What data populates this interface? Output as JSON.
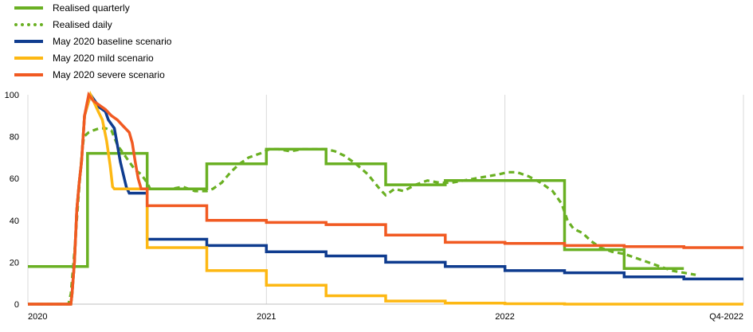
{
  "chart_data": {
    "type": "line",
    "title": "",
    "xlabel": "",
    "ylabel": "",
    "xlim": [
      0,
      12
    ],
    "ylim": [
      0,
      100
    ],
    "yticks": [
      0,
      20,
      40,
      60,
      80,
      100
    ],
    "xticks": [
      {
        "value": 0,
        "label": "2020"
      },
      {
        "value": 4,
        "label": "2021"
      },
      {
        "value": 8,
        "label": "2022"
      },
      {
        "value": 12,
        "label": "Q4-2022"
      }
    ],
    "grid": "vertical",
    "legend_position": "top-left",
    "series": [
      {
        "name": "Realised quarterly",
        "color": "#6ab023",
        "style": "solid",
        "points": [
          [
            0,
            18
          ],
          [
            1,
            18
          ],
          [
            1,
            72
          ],
          [
            2,
            72
          ],
          [
            2,
            55
          ],
          [
            3,
            55
          ],
          [
            3,
            67
          ],
          [
            4,
            67
          ],
          [
            4,
            74
          ],
          [
            5,
            74
          ],
          [
            5,
            67
          ],
          [
            6,
            67
          ],
          [
            6,
            57
          ],
          [
            7,
            57
          ],
          [
            7,
            59
          ],
          [
            8,
            59
          ],
          [
            8,
            59
          ],
          [
            9,
            59
          ],
          [
            9,
            55
          ],
          [
            9,
            26
          ],
          [
            10,
            26
          ],
          [
            10,
            17
          ],
          [
            11,
            17
          ]
        ]
      },
      {
        "name": "Realised daily",
        "color": "#6ab023",
        "style": "dotted",
        "points": [
          [
            0,
            0
          ],
          [
            0.68,
            0
          ],
          [
            0.72,
            5
          ],
          [
            0.78,
            25
          ],
          [
            0.84,
            48
          ],
          [
            0.9,
            70
          ],
          [
            0.94,
            80
          ],
          [
            1.02,
            82
          ],
          [
            1.1,
            83
          ],
          [
            1.2,
            84
          ],
          [
            1.3,
            84
          ],
          [
            1.4,
            83
          ],
          [
            1.5,
            76
          ],
          [
            1.6,
            72
          ],
          [
            1.7,
            68
          ],
          [
            1.8,
            64
          ],
          [
            1.9,
            62
          ],
          [
            2.0,
            58
          ],
          [
            2.05,
            55
          ],
          [
            2.2,
            55
          ],
          [
            2.4,
            55
          ],
          [
            2.6,
            56
          ],
          [
            2.8,
            54
          ],
          [
            3.0,
            54
          ],
          [
            3.1,
            55
          ],
          [
            3.25,
            58
          ],
          [
            3.4,
            63
          ],
          [
            3.55,
            67
          ],
          [
            3.7,
            70
          ],
          [
            3.9,
            72
          ],
          [
            4.05,
            74
          ],
          [
            4.2,
            74
          ],
          [
            4.4,
            73
          ],
          [
            4.6,
            74
          ],
          [
            4.8,
            74
          ],
          [
            5.0,
            74
          ],
          [
            5.15,
            73
          ],
          [
            5.3,
            71
          ],
          [
            5.5,
            67
          ],
          [
            5.7,
            62
          ],
          [
            5.9,
            55
          ],
          [
            6.0,
            52
          ],
          [
            6.15,
            55
          ],
          [
            6.3,
            54
          ],
          [
            6.5,
            57
          ],
          [
            6.7,
            59
          ],
          [
            6.9,
            58
          ],
          [
            7.1,
            58
          ],
          [
            7.3,
            59
          ],
          [
            7.5,
            60
          ],
          [
            7.7,
            61
          ],
          [
            7.9,
            62
          ],
          [
            8.05,
            63
          ],
          [
            8.2,
            63
          ],
          [
            8.4,
            61
          ],
          [
            8.6,
            58
          ],
          [
            8.8,
            54
          ],
          [
            8.95,
            48
          ],
          [
            9.05,
            40
          ],
          [
            9.15,
            36
          ],
          [
            9.3,
            34
          ],
          [
            9.45,
            30
          ],
          [
            9.6,
            27
          ],
          [
            9.8,
            25
          ],
          [
            10.0,
            24
          ],
          [
            10.2,
            22
          ],
          [
            10.4,
            20
          ],
          [
            10.6,
            18
          ],
          [
            10.8,
            16
          ],
          [
            11.0,
            15
          ],
          [
            11.2,
            14
          ]
        ]
      },
      {
        "name": "May 2020 baseline scenario",
        "color": "#0f3c8f",
        "style": "solid",
        "points": [
          [
            0,
            0
          ],
          [
            0.72,
            0
          ],
          [
            0.74,
            5
          ],
          [
            0.78,
            20
          ],
          [
            0.82,
            45
          ],
          [
            0.86,
            58
          ],
          [
            0.9,
            68
          ],
          [
            0.95,
            90
          ],
          [
            1.05,
            100
          ],
          [
            1.1,
            98
          ],
          [
            1.2,
            94
          ],
          [
            1.3,
            92
          ],
          [
            1.35,
            88
          ],
          [
            1.45,
            84
          ],
          [
            1.5,
            76
          ],
          [
            1.55,
            68
          ],
          [
            1.6,
            62
          ],
          [
            1.65,
            56
          ],
          [
            1.7,
            53
          ],
          [
            2,
            53
          ],
          [
            2,
            31
          ],
          [
            3,
            31
          ],
          [
            3,
            28
          ],
          [
            4,
            28
          ],
          [
            4,
            25
          ],
          [
            5,
            25
          ],
          [
            5,
            23
          ],
          [
            6,
            23
          ],
          [
            6,
            20
          ],
          [
            7,
            20
          ],
          [
            7,
            18
          ],
          [
            8,
            18
          ],
          [
            8,
            16
          ],
          [
            9,
            16
          ],
          [
            9,
            15
          ],
          [
            10,
            15
          ],
          [
            10,
            13
          ],
          [
            11,
            13
          ],
          [
            11,
            12
          ],
          [
            12,
            12
          ]
        ]
      },
      {
        "name": "May 2020 mild scenario",
        "color": "#fdb813",
        "style": "solid",
        "points": [
          [
            0,
            0
          ],
          [
            0.72,
            0
          ],
          [
            0.74,
            5
          ],
          [
            0.78,
            20
          ],
          [
            0.82,
            45
          ],
          [
            0.86,
            58
          ],
          [
            0.9,
            68
          ],
          [
            0.95,
            90
          ],
          [
            1.05,
            100
          ],
          [
            1.1,
            97
          ],
          [
            1.18,
            92
          ],
          [
            1.25,
            88
          ],
          [
            1.32,
            78
          ],
          [
            1.38,
            66
          ],
          [
            1.42,
            56
          ],
          [
            1.45,
            55
          ],
          [
            2,
            55
          ],
          [
            2,
            27
          ],
          [
            3,
            27
          ],
          [
            3,
            16
          ],
          [
            4,
            16
          ],
          [
            4,
            9
          ],
          [
            5,
            9
          ],
          [
            5,
            4
          ],
          [
            6,
            4
          ],
          [
            6,
            1.5
          ],
          [
            7,
            1.5
          ],
          [
            7,
            0.5
          ],
          [
            8,
            0.5
          ],
          [
            8,
            0.2
          ],
          [
            9,
            0.2
          ],
          [
            9,
            0
          ],
          [
            12,
            0
          ]
        ]
      },
      {
        "name": "May 2020 severe scenario",
        "color": "#f15a22",
        "style": "solid",
        "points": [
          [
            0,
            0
          ],
          [
            0.72,
            0
          ],
          [
            0.74,
            5
          ],
          [
            0.78,
            20
          ],
          [
            0.82,
            45
          ],
          [
            0.86,
            58
          ],
          [
            0.9,
            68
          ],
          [
            0.95,
            90
          ],
          [
            1.02,
            100
          ],
          [
            1.1,
            97
          ],
          [
            1.2,
            95
          ],
          [
            1.3,
            93
          ],
          [
            1.4,
            90
          ],
          [
            1.5,
            88
          ],
          [
            1.6,
            85
          ],
          [
            1.7,
            82
          ],
          [
            1.75,
            77
          ],
          [
            1.8,
            68
          ],
          [
            1.85,
            60
          ],
          [
            1.9,
            55
          ],
          [
            2,
            55
          ],
          [
            2,
            47
          ],
          [
            3,
            47
          ],
          [
            3,
            40
          ],
          [
            4,
            40
          ],
          [
            4,
            39
          ],
          [
            5,
            39
          ],
          [
            5,
            38
          ],
          [
            6,
            38
          ],
          [
            6,
            33
          ],
          [
            7,
            33
          ],
          [
            7,
            29.5
          ],
          [
            8,
            29.5
          ],
          [
            8,
            29
          ],
          [
            9,
            29
          ],
          [
            9,
            28
          ],
          [
            10,
            28
          ],
          [
            10,
            27.5
          ],
          [
            11,
            27.5
          ],
          [
            11,
            27
          ],
          [
            12,
            27
          ]
        ]
      }
    ]
  }
}
